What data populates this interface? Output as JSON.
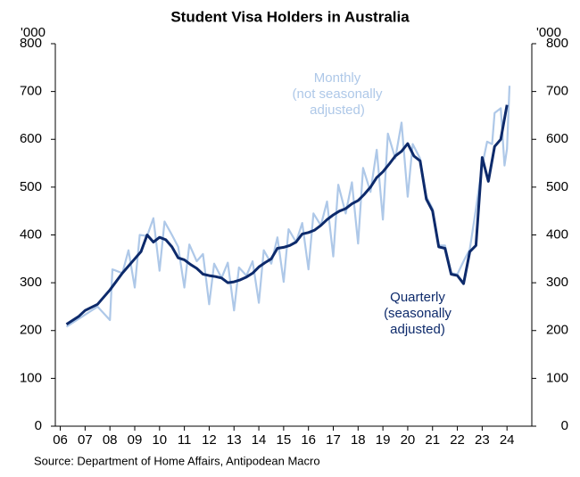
{
  "chart_data": {
    "type": "line",
    "title": "Student Visa Holders in Australia",
    "y_unit_label": "'000",
    "y2_unit_label": "'000",
    "source": "Source: Department of Home Affairs, Antipodean Macro",
    "xlim": [
      2005.8,
      2025.0
    ],
    "xticks": [
      {
        "value": 2006,
        "label": "06"
      },
      {
        "value": 2007,
        "label": "07"
      },
      {
        "value": 2008,
        "label": "08"
      },
      {
        "value": 2009,
        "label": "09"
      },
      {
        "value": 2010,
        "label": "10"
      },
      {
        "value": 2011,
        "label": "11"
      },
      {
        "value": 2012,
        "label": "12"
      },
      {
        "value": 2013,
        "label": "13"
      },
      {
        "value": 2014,
        "label": "14"
      },
      {
        "value": 2015,
        "label": "15"
      },
      {
        "value": 2016,
        "label": "16"
      },
      {
        "value": 2017,
        "label": "17"
      },
      {
        "value": 2018,
        "label": "18"
      },
      {
        "value": 2019,
        "label": "19"
      },
      {
        "value": 2020,
        "label": "20"
      },
      {
        "value": 2021,
        "label": "21"
      },
      {
        "value": 2022,
        "label": "22"
      },
      {
        "value": 2023,
        "label": "23"
      },
      {
        "value": 2024,
        "label": "24"
      }
    ],
    "ylim": [
      0,
      800
    ],
    "yticks": [
      0,
      100,
      200,
      300,
      400,
      500,
      600,
      700,
      800
    ],
    "y2lim": [
      0,
      800
    ],
    "y2ticks": [
      0,
      100,
      200,
      300,
      400,
      500,
      600,
      700,
      800
    ],
    "series": [
      {
        "name": [
          "Monthly",
          "(not seasonally",
          "adjusted)"
        ],
        "color": "#aec8e8",
        "x": [
          2006.25,
          2007.5,
          2008.0,
          2008.1,
          2008.5,
          2008.75,
          2009.0,
          2009.2,
          2009.5,
          2009.75,
          2010.0,
          2010.2,
          2010.5,
          2010.75,
          2011.0,
          2011.2,
          2011.5,
          2011.75,
          2012.0,
          2012.2,
          2012.5,
          2012.75,
          2013.0,
          2013.2,
          2013.5,
          2013.75,
          2014.0,
          2014.2,
          2014.5,
          2014.75,
          2015.0,
          2015.2,
          2015.5,
          2015.75,
          2016.0,
          2016.2,
          2016.5,
          2016.75,
          2017.0,
          2017.2,
          2017.5,
          2017.75,
          2018.0,
          2018.2,
          2018.5,
          2018.75,
          2019.0,
          2019.2,
          2019.5,
          2019.75,
          2020.0,
          2020.2,
          2020.5,
          2020.75,
          2021.0,
          2021.25,
          2021.5,
          2021.75,
          2022.0,
          2022.25,
          2022.5,
          2022.75,
          2023.0,
          2023.2,
          2023.4,
          2023.5,
          2023.75,
          2023.9,
          2024.0,
          2024.1
        ],
        "values": [
          208,
          250,
          222,
          328,
          320,
          368,
          290,
          400,
          398,
          435,
          325,
          428,
          400,
          375,
          290,
          380,
          345,
          360,
          255,
          340,
          310,
          342,
          242,
          332,
          315,
          345,
          258,
          368,
          340,
          395,
          302,
          412,
          385,
          425,
          328,
          445,
          420,
          470,
          355,
          505,
          445,
          510,
          382,
          540,
          490,
          578,
          432,
          612,
          560,
          635,
          480,
          590,
          560,
          480,
          455,
          378,
          378,
          320,
          318,
          345,
          370,
          455,
          545,
          595,
          590,
          655,
          665,
          545,
          580,
          712
        ]
      },
      {
        "name": [
          "Quarterly",
          "(seasonally",
          "adjusted)"
        ],
        "color": "#0d2a6b",
        "x": [
          2006.25,
          2006.75,
          2007.0,
          2007.5,
          2008.0,
          2008.5,
          2009.0,
          2009.25,
          2009.5,
          2009.75,
          2010.0,
          2010.25,
          2010.5,
          2010.75,
          2011.0,
          2011.25,
          2011.5,
          2011.75,
          2012.0,
          2012.25,
          2012.5,
          2012.75,
          2013.0,
          2013.25,
          2013.5,
          2013.75,
          2014.0,
          2014.25,
          2014.5,
          2014.75,
          2015.0,
          2015.25,
          2015.5,
          2015.75,
          2016.0,
          2016.25,
          2016.5,
          2016.75,
          2017.0,
          2017.25,
          2017.5,
          2017.75,
          2018.0,
          2018.25,
          2018.5,
          2018.75,
          2019.0,
          2019.25,
          2019.5,
          2019.75,
          2020.0,
          2020.25,
          2020.5,
          2020.75,
          2021.0,
          2021.25,
          2021.5,
          2021.75,
          2022.0,
          2022.25,
          2022.5,
          2022.75,
          2023.0,
          2023.25,
          2023.5,
          2023.75,
          2024.0
        ],
        "values": [
          213,
          230,
          242,
          255,
          285,
          320,
          350,
          365,
          400,
          385,
          395,
          390,
          375,
          352,
          348,
          338,
          330,
          318,
          315,
          313,
          310,
          300,
          302,
          306,
          312,
          320,
          333,
          342,
          350,
          372,
          374,
          378,
          385,
          402,
          405,
          410,
          420,
          432,
          442,
          450,
          455,
          465,
          472,
          485,
          500,
          520,
          532,
          548,
          565,
          575,
          591,
          565,
          555,
          475,
          450,
          375,
          372,
          318,
          315,
          298,
          365,
          378,
          562,
          512,
          585,
          600,
          672
        ]
      }
    ]
  }
}
